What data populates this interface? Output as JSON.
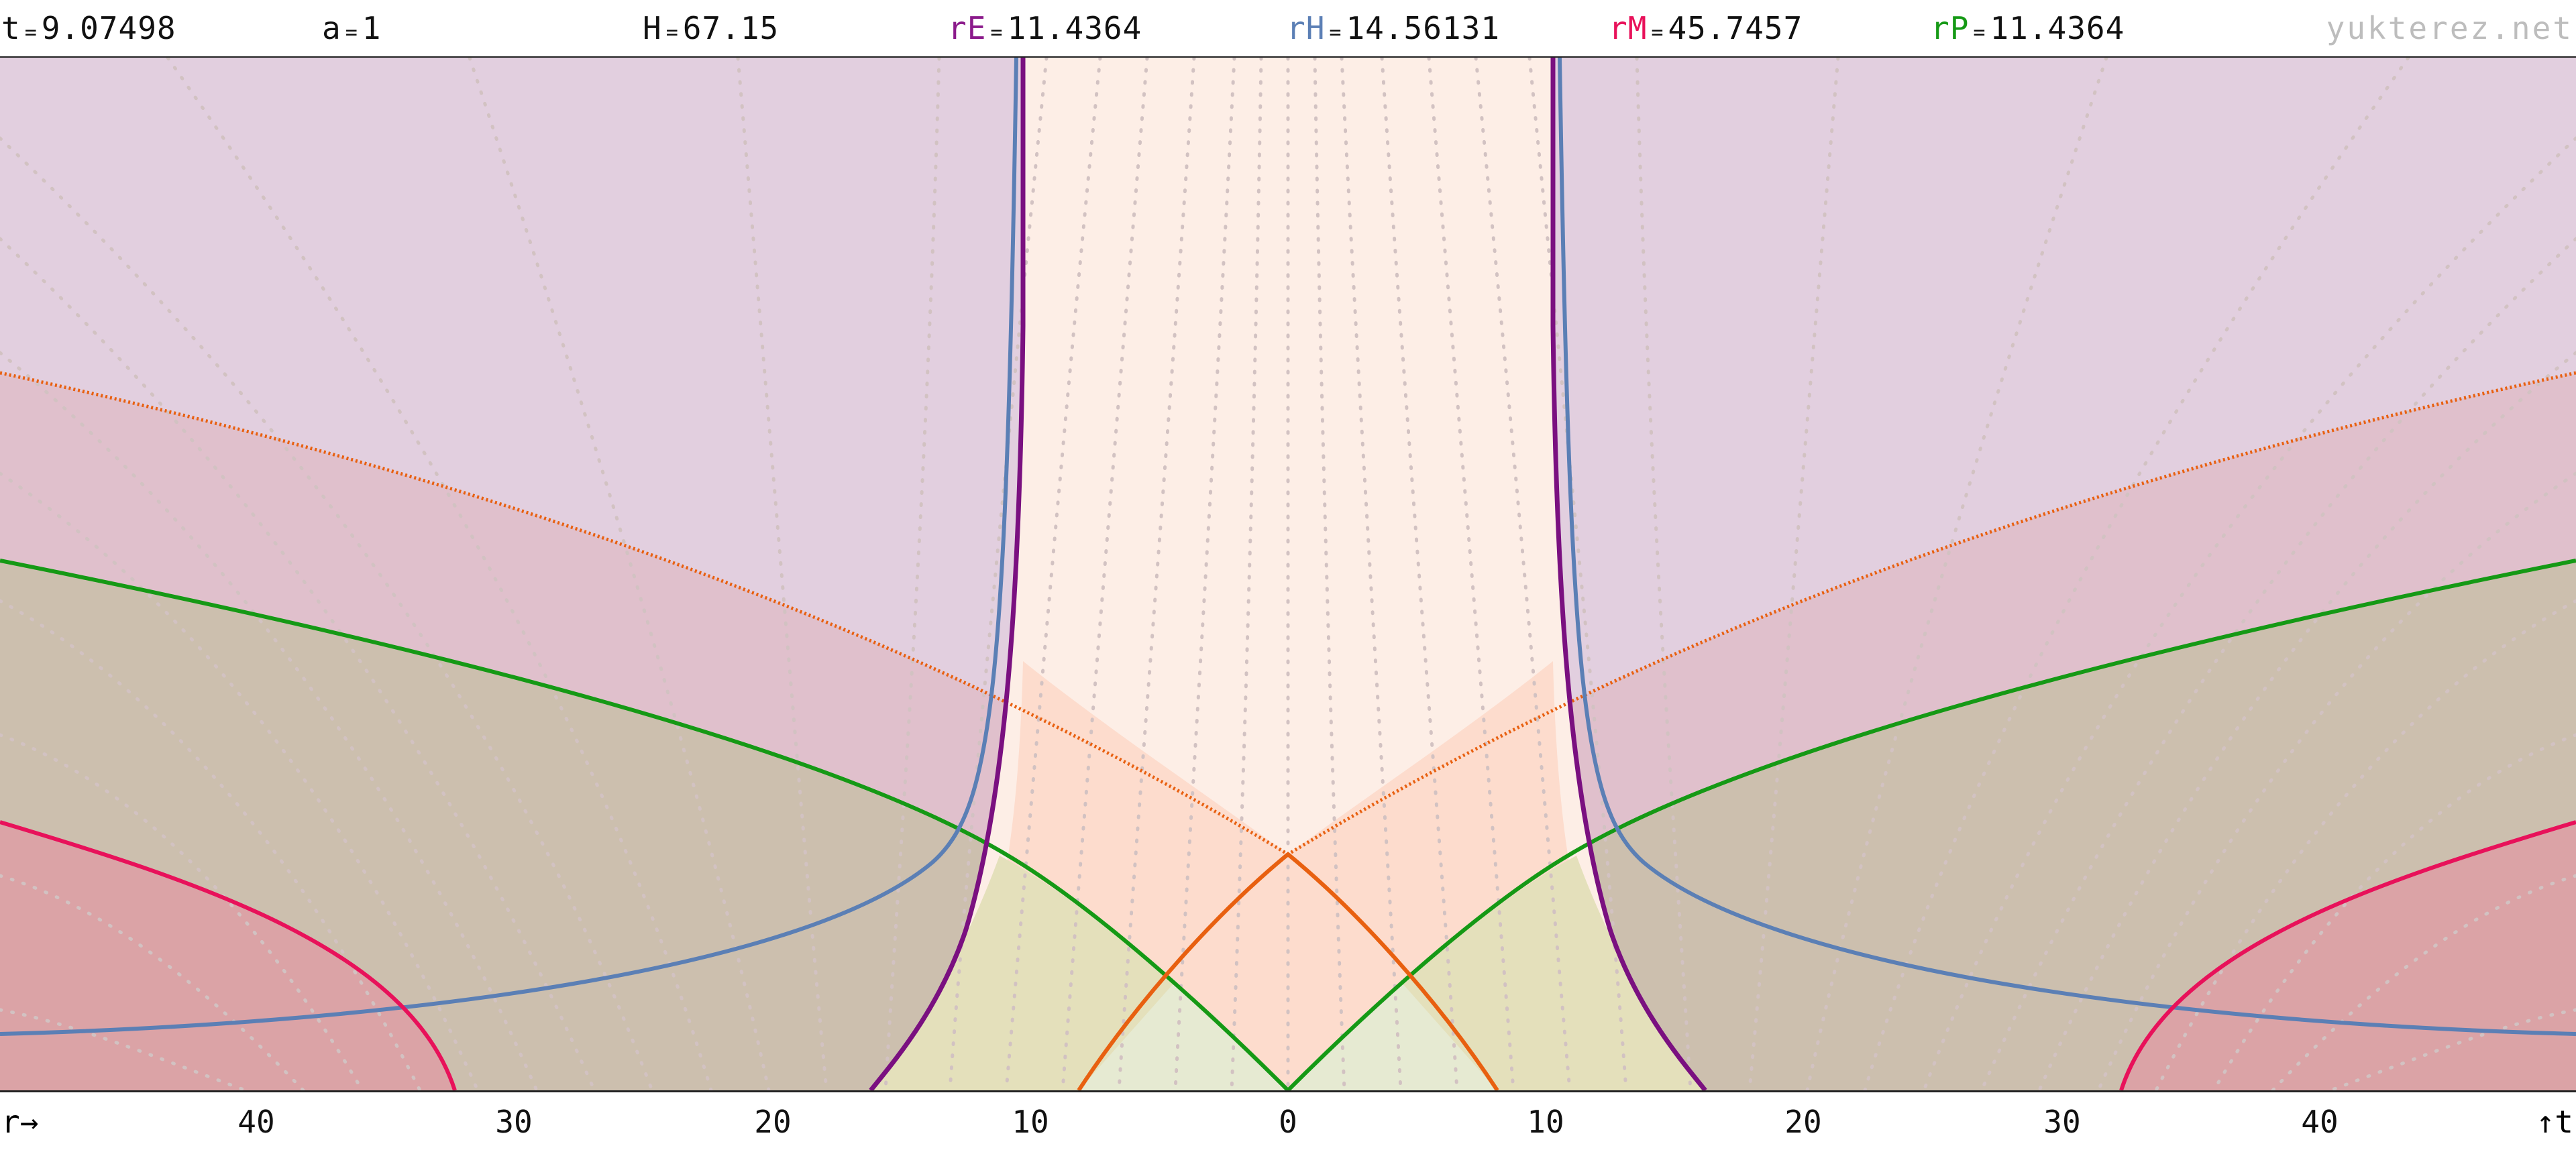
{
  "header": {
    "params": [
      {
        "id": "t",
        "symbol": "t",
        "value": "9.07498",
        "color": "#111111"
      },
      {
        "id": "a",
        "symbol": "a",
        "value": "1",
        "color": "#111111"
      },
      {
        "id": "H",
        "symbol": "H",
        "value": "67.15",
        "color": "#111111"
      },
      {
        "id": "rE",
        "symbol": "rE",
        "value": "11.4364",
        "color": "#8b1a8b"
      },
      {
        "id": "rH",
        "symbol": "rH",
        "value": "14.56131",
        "color": "#5b7fb5"
      },
      {
        "id": "rM",
        "symbol": "rM",
        "value": "45.7457",
        "color": "#e8115a"
      },
      {
        "id": "rP",
        "symbol": "rP",
        "value": "11.4364",
        "color": "#159915"
      }
    ],
    "equals": "=",
    "brand": "yukterez.net"
  },
  "axis": {
    "left_label": "r→",
    "right_label": "↑t",
    "ticks": [
      "40",
      "30",
      "20",
      "10",
      "0",
      "10",
      "20",
      "30",
      "40"
    ]
  },
  "diagram": {
    "colors": {
      "background": "#ffffff",
      "outer_purple": "#e2cfdf",
      "pink_region": "#e0c0cc",
      "tan_region": "#ccbfae",
      "red_region": "#dba3a6",
      "peach_core": "#fdeee6",
      "light_cone_fill": "#fddccd",
      "yellow_region": "#e4e0bb",
      "green_bottom": "#e6ead2",
      "event_horizon": "#7a1080",
      "hubble": "#5b7fb5",
      "particle_horizon": "#159915",
      "max_radius": "#e8115a",
      "light_cone": "#e86010",
      "grid_dots": "#d2c2c2"
    }
  }
}
